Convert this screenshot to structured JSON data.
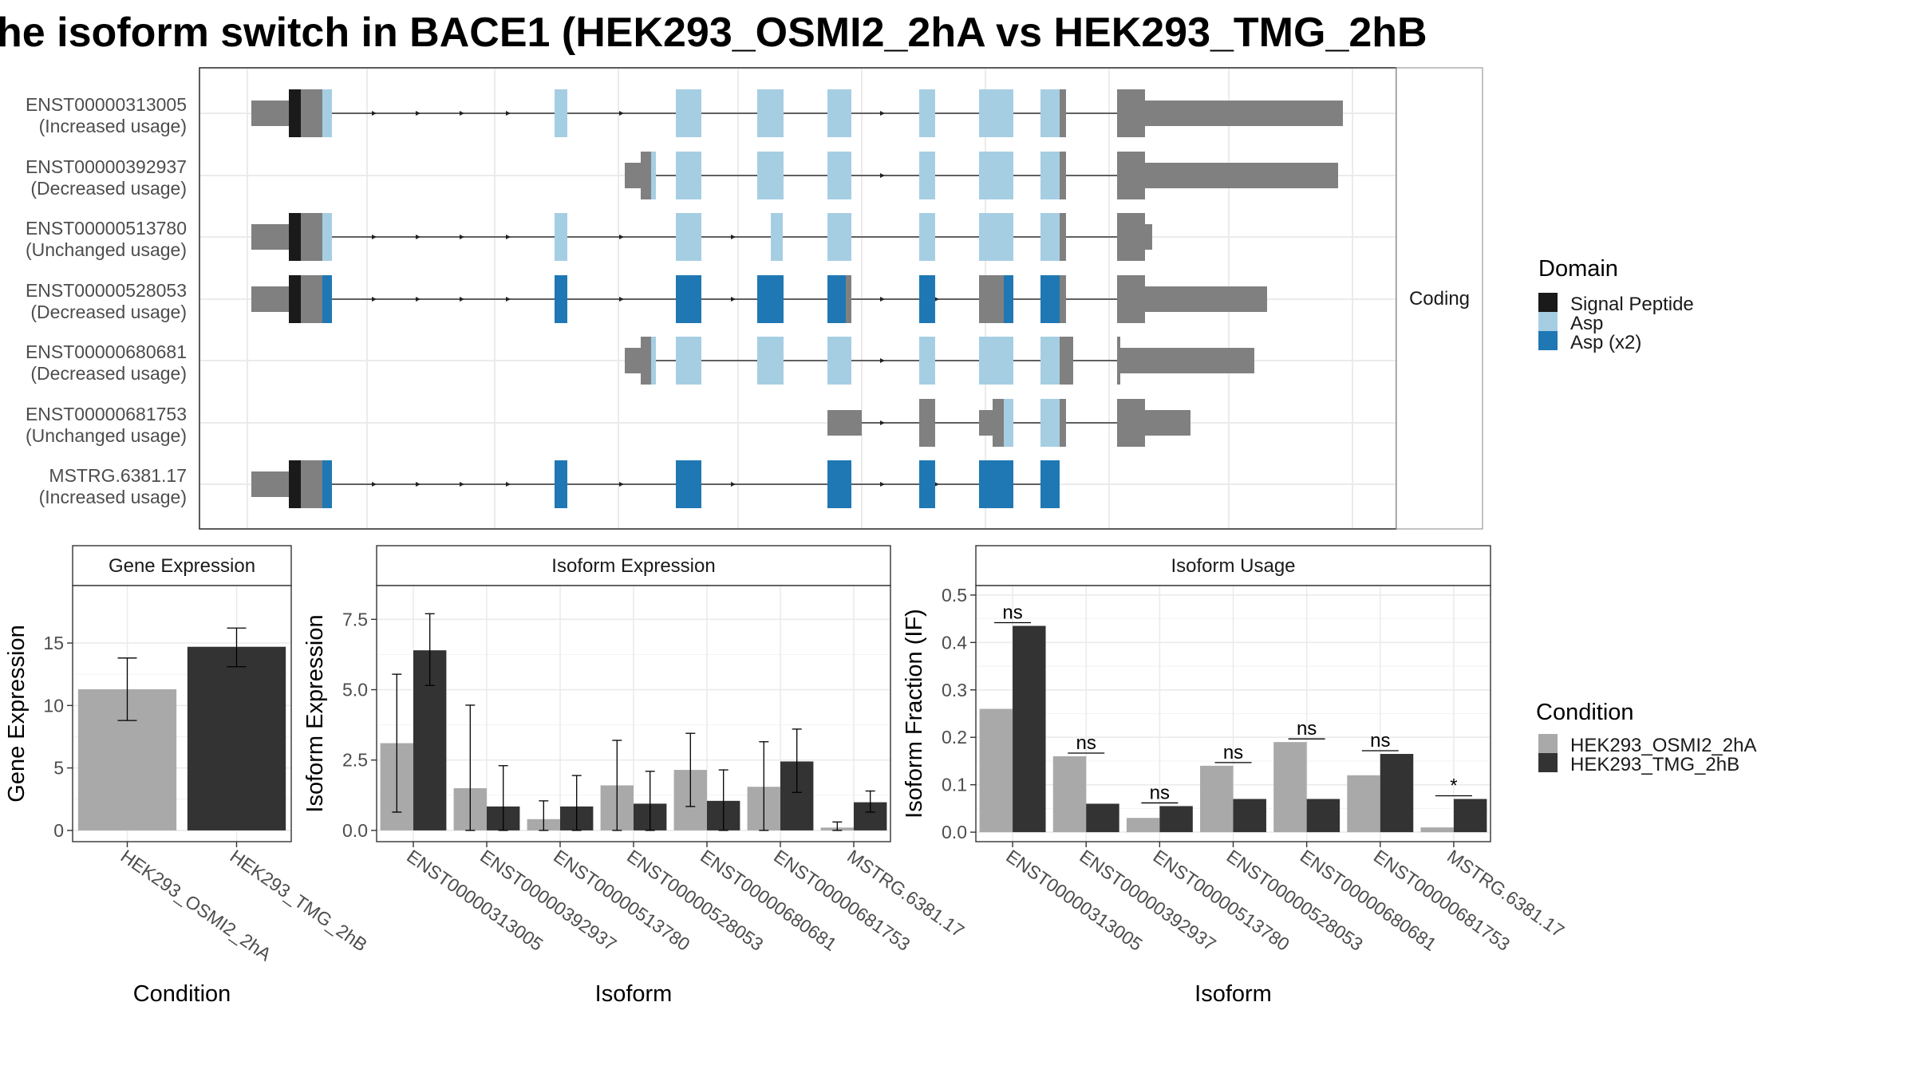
{
  "title": "he isoform switch in BACE1 (HEK293_OSMI2_2hA vs HEK293_TMG_2hB",
  "colors": {
    "signal_peptide": "#1a1a1a",
    "asp": "#a6cee3",
    "asp_x2": "#1f78b4",
    "noncoding": "#808080",
    "cond1": "#a9a9a9",
    "cond2": "#333333"
  },
  "isoforms_panel": {
    "facet_label": "Coding",
    "legend_title": "Domain",
    "legend": [
      "Signal Peptide",
      "Asp",
      "Asp (x2)"
    ],
    "transcripts": [
      {
        "id": "ENST00000313005",
        "usage": "(Increased usage)"
      },
      {
        "id": "ENST00000392937",
        "usage": "(Decreased usage)"
      },
      {
        "id": "ENST00000513780",
        "usage": "(Unchanged usage)"
      },
      {
        "id": "ENST00000528053",
        "usage": "(Decreased usage)"
      },
      {
        "id": "ENST00000680681",
        "usage": "(Decreased usage)"
      },
      {
        "id": "ENST00000681753",
        "usage": "(Unchanged usage)"
      },
      {
        "id": "MSTRG.6381.17",
        "usage": "(Increased usage)"
      }
    ]
  },
  "condition_legend": {
    "title": "Condition",
    "items": [
      "HEK293_OSMI2_2hA",
      "HEK293_TMG_2hB"
    ]
  },
  "chart_data": [
    {
      "type": "bar",
      "title": "Gene Expression",
      "xlabel": "Condition",
      "ylabel": "Gene Expression",
      "categories": [
        "HEK293_OSMI2_2hA",
        "HEK293_TMG_2hB"
      ],
      "values": [
        11.3,
        14.7
      ],
      "err_low": [
        8.8,
        13.1
      ],
      "err_high": [
        13.8,
        16.2
      ],
      "ylim": [
        -0.9,
        19.6
      ],
      "yticks": [
        0,
        5,
        10,
        15
      ]
    },
    {
      "type": "bar",
      "title": "Isoform Expression",
      "xlabel": "Isoform",
      "ylabel": "Isoform Expression",
      "categories": [
        "ENST00000313005",
        "ENST00000392937",
        "ENST00000513780",
        "ENST00000528053",
        "ENST00000680681",
        "ENST00000681753",
        "MSTRG.6381.17"
      ],
      "series": [
        {
          "name": "HEK293_OSMI2_2hA",
          "values": [
            3.1,
            1.5,
            0.4,
            1.6,
            2.15,
            1.55,
            0.1
          ],
          "err_low": [
            0.65,
            0.0,
            0.0,
            0.0,
            0.85,
            0.0,
            0.0
          ],
          "err_high": [
            5.55,
            4.45,
            1.05,
            3.2,
            3.45,
            3.15,
            0.3
          ]
        },
        {
          "name": "HEK293_TMG_2hB",
          "values": [
            6.4,
            0.85,
            0.85,
            0.95,
            1.05,
            2.45,
            1.0
          ],
          "err_low": [
            5.15,
            0.0,
            0.0,
            0.0,
            0.0,
            1.35,
            0.65
          ],
          "err_high": [
            7.7,
            2.3,
            1.95,
            2.1,
            2.15,
            3.6,
            1.4
          ]
        }
      ],
      "ylim": [
        -0.4,
        8.7
      ],
      "yticks": [
        "0.0",
        "2.5",
        "5.0",
        "7.5"
      ]
    },
    {
      "type": "bar",
      "title": "Isoform Usage",
      "xlabel": "Isoform",
      "ylabel": "Isoform Fraction (IF)",
      "categories": [
        "ENST00000313005",
        "ENST00000392937",
        "ENST00000513780",
        "ENST00000528053",
        "ENST00000680681",
        "ENST00000681753",
        "MSTRG.6381.17"
      ],
      "series": [
        {
          "name": "HEK293_OSMI2_2hA",
          "values": [
            0.26,
            0.16,
            0.03,
            0.14,
            0.19,
            0.12,
            0.01
          ]
        },
        {
          "name": "HEK293_TMG_2hB",
          "values": [
            0.435,
            0.06,
            0.055,
            0.07,
            0.07,
            0.165,
            0.07
          ]
        }
      ],
      "significance": [
        "ns",
        "ns",
        "ns",
        "ns",
        "ns",
        "ns",
        "*"
      ],
      "ylim": [
        -0.02,
        0.52
      ],
      "yticks": [
        "0.0",
        "0.1",
        "0.2",
        "0.3",
        "0.4",
        "0.5"
      ]
    }
  ]
}
